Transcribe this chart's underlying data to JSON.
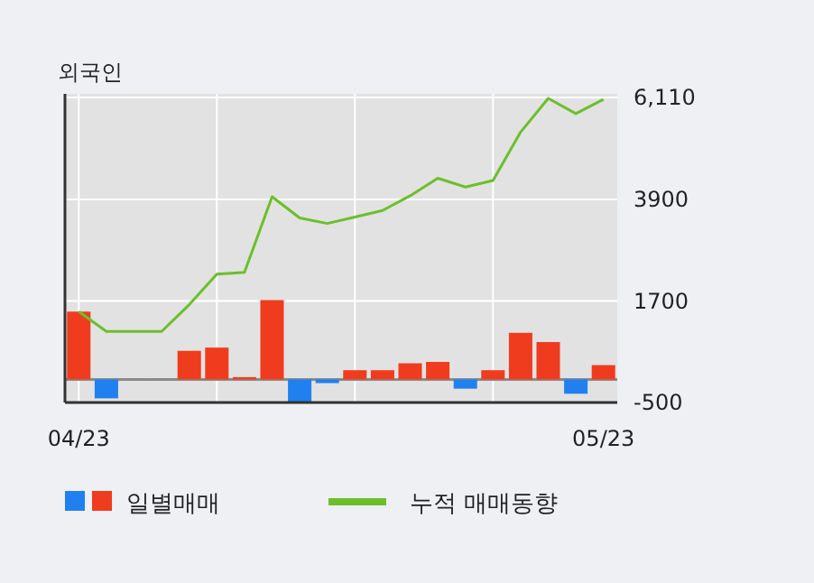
{
  "chart_data": {
    "type": "bar",
    "title": "외국인",
    "categories": [
      "04/23",
      null,
      null,
      null,
      null,
      null,
      null,
      null,
      null,
      null,
      null,
      null,
      null,
      null,
      null,
      null,
      null,
      null,
      null,
      "05/23"
    ],
    "series": [
      {
        "name": "일별매매",
        "colors": [
          "#f03c1e",
          "#2080f0",
          "#f03c1e",
          "#f03c1e",
          "#f03c1e",
          "#f03c1e",
          "#f03c1e",
          "#f03c1e",
          "#2080f0",
          "#2080f0",
          "#f03c1e",
          "#f03c1e",
          "#f03c1e",
          "#f03c1e",
          "#2080f0",
          "#f03c1e",
          "#f03c1e",
          "#f03c1e",
          "#2080f0",
          "#f03c1e"
        ],
        "values": [
          1470,
          -410,
          0,
          0,
          620,
          690,
          50,
          1720,
          -490,
          -80,
          200,
          200,
          350,
          380,
          -200,
          200,
          1010,
          810,
          -310,
          310
        ]
      },
      {
        "name": "누적 매매동향",
        "type": "line",
        "color": "#6cbf2a",
        "values": [
          1470,
          1040,
          1040,
          1040,
          1620,
          2280,
          2320,
          3960,
          3500,
          3380,
          3520,
          3660,
          3980,
          4360,
          4170,
          4310,
          5360,
          6090,
          5760,
          6070
        ]
      }
    ],
    "ylim": [
      -500,
      6110
    ],
    "yticks": [
      {
        "value": 6110,
        "label": "6,110"
      },
      3900,
      1700,
      -500
    ],
    "grid": true,
    "legend": "bottom"
  }
}
